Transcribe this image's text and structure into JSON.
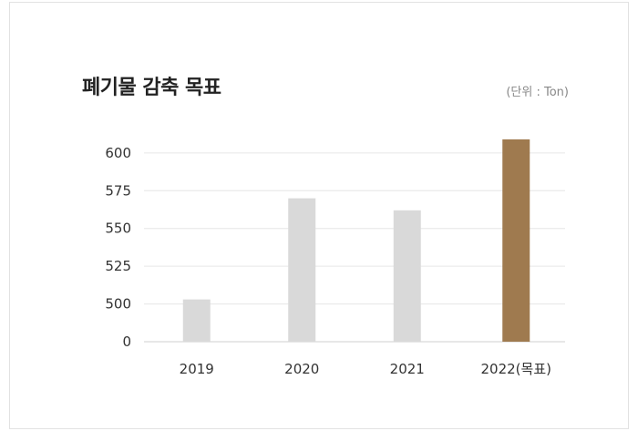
{
  "title": "폐기물 감축 목표",
  "unit_label": "(단위 : Ton)",
  "colors": {
    "bar": "#d9d9d9",
    "highlight": "#9f7a4f",
    "grid": "#e6e6e6"
  },
  "chart_data": {
    "type": "bar",
    "categories": [
      "2019",
      "2020",
      "2021",
      "2022(목표)"
    ],
    "values": [
      503,
      570,
      562,
      609
    ],
    "highlight_index": 3,
    "y_ticks": [
      "0",
      "500",
      "525",
      "550",
      "575",
      "600"
    ],
    "y_tick_values": [
      475,
      500,
      525,
      550,
      575,
      600
    ],
    "ylim": [
      475,
      612
    ],
    "axis_break": true,
    "grid": true
  }
}
